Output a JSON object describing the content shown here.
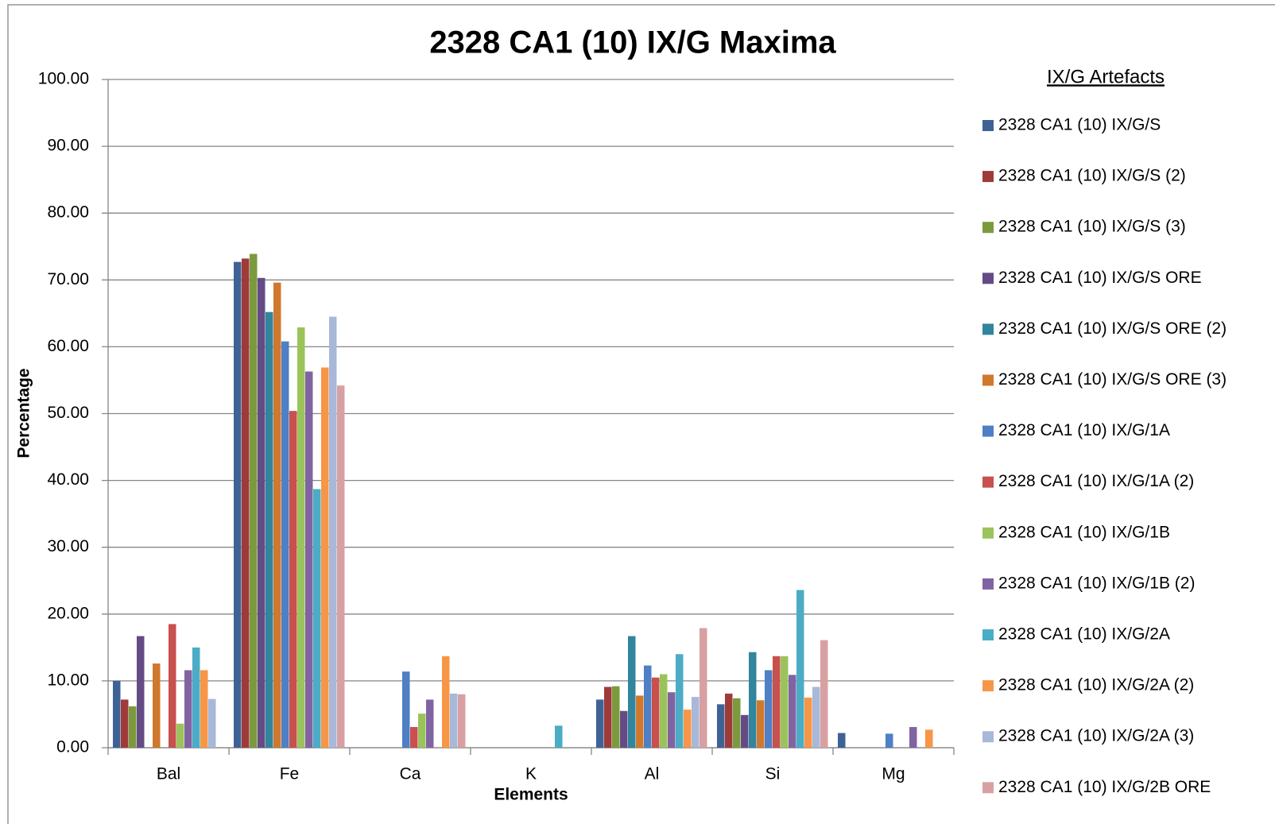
{
  "chart_data": {
    "type": "bar",
    "title": "2328 CA1 (10) IX/G Maxima",
    "x_label": "Elements",
    "y_label": "Percentage",
    "legend_title": "IX/G Artefacts",
    "legend": "right",
    "grid": true,
    "categories": [
      "Bal",
      "Fe",
      "Ca",
      "K",
      "Al",
      "Si",
      "Mg"
    ],
    "ylim": [
      0,
      100
    ],
    "yticks": [
      {
        "value": 0,
        "label": "0.00"
      },
      {
        "value": 10,
        "label": "10.00"
      },
      {
        "value": 20,
        "label": "20.00"
      },
      {
        "value": 30,
        "label": "30.00"
      },
      {
        "value": 40,
        "label": "40.00"
      },
      {
        "value": 50,
        "label": "50.00"
      },
      {
        "value": 60,
        "label": "60.00"
      },
      {
        "value": 70,
        "label": "70.00"
      },
      {
        "value": 80,
        "label": "80.00"
      },
      {
        "value": 90,
        "label": "90.00"
      },
      {
        "value": 100,
        "label": "100.00"
      }
    ],
    "series": [
      {
        "name": "2328 CA1 (10) IX/G/S",
        "color": "#3F6295",
        "values": [
          10.0,
          72.7,
          0,
          0,
          7.2,
          6.5,
          2.2
        ]
      },
      {
        "name": "2328 CA1 (10) IX/G/S (2)",
        "color": "#9E3B38",
        "values": [
          7.2,
          73.2,
          0,
          0,
          9.1,
          8.1,
          0
        ]
      },
      {
        "name": "2328 CA1 (10) IX/G/S (3)",
        "color": "#7B9A3E",
        "values": [
          6.2,
          73.9,
          0,
          0,
          9.2,
          7.4,
          0
        ]
      },
      {
        "name": "2328 CA1 (10) IX/G/S ORE",
        "color": "#644B86",
        "values": [
          16.7,
          70.3,
          0,
          0,
          5.5,
          4.9,
          0
        ]
      },
      {
        "name": "2328 CA1 (10) IX/G/S ORE (2)",
        "color": "#31859C",
        "values": [
          0,
          65.2,
          0,
          0,
          16.7,
          14.3,
          0
        ]
      },
      {
        "name": "2328 CA1 (10) IX/G/S ORE (3)",
        "color": "#D0782D",
        "values": [
          12.6,
          69.6,
          0,
          0,
          7.8,
          7.1,
          0
        ]
      },
      {
        "name": "2328 CA1 (10) IX/G/1A",
        "color": "#4F7FC4",
        "values": [
          0,
          60.8,
          11.4,
          0,
          12.3,
          11.6,
          2.1
        ]
      },
      {
        "name": "2328 CA1 (10) IX/G/1A (2)",
        "color": "#C8504D",
        "values": [
          18.5,
          50.4,
          3.1,
          0,
          10.5,
          13.7,
          0
        ]
      },
      {
        "name": "2328 CA1 (10) IX/G/1B",
        "color": "#9BC35B",
        "values": [
          3.6,
          62.9,
          5.1,
          0,
          11.0,
          13.7,
          0
        ]
      },
      {
        "name": "2328 CA1 (10) IX/G/1B (2)",
        "color": "#8064A2",
        "values": [
          11.6,
          56.3,
          7.2,
          0,
          8.3,
          10.9,
          3.1
        ]
      },
      {
        "name": "2328 CA1 (10) IX/G/2A",
        "color": "#4BACC6",
        "values": [
          15.0,
          38.7,
          0,
          3.3,
          14.0,
          23.6,
          0
        ]
      },
      {
        "name": "2328 CA1 (10) IX/G/2A (2)",
        "color": "#F79646",
        "values": [
          11.6,
          56.9,
          13.7,
          0,
          5.7,
          7.5,
          2.7
        ]
      },
      {
        "name": "2328 CA1 (10) IX/G/2A (3)",
        "color": "#A8B8D8",
        "values": [
          7.3,
          64.5,
          8.1,
          0,
          7.6,
          9.1,
          0
        ]
      },
      {
        "name": "2328 CA1 (10) IX/G/2B ORE",
        "color": "#D8A0A2",
        "values": [
          0,
          54.2,
          8.0,
          0,
          17.9,
          16.1,
          0
        ]
      }
    ]
  }
}
